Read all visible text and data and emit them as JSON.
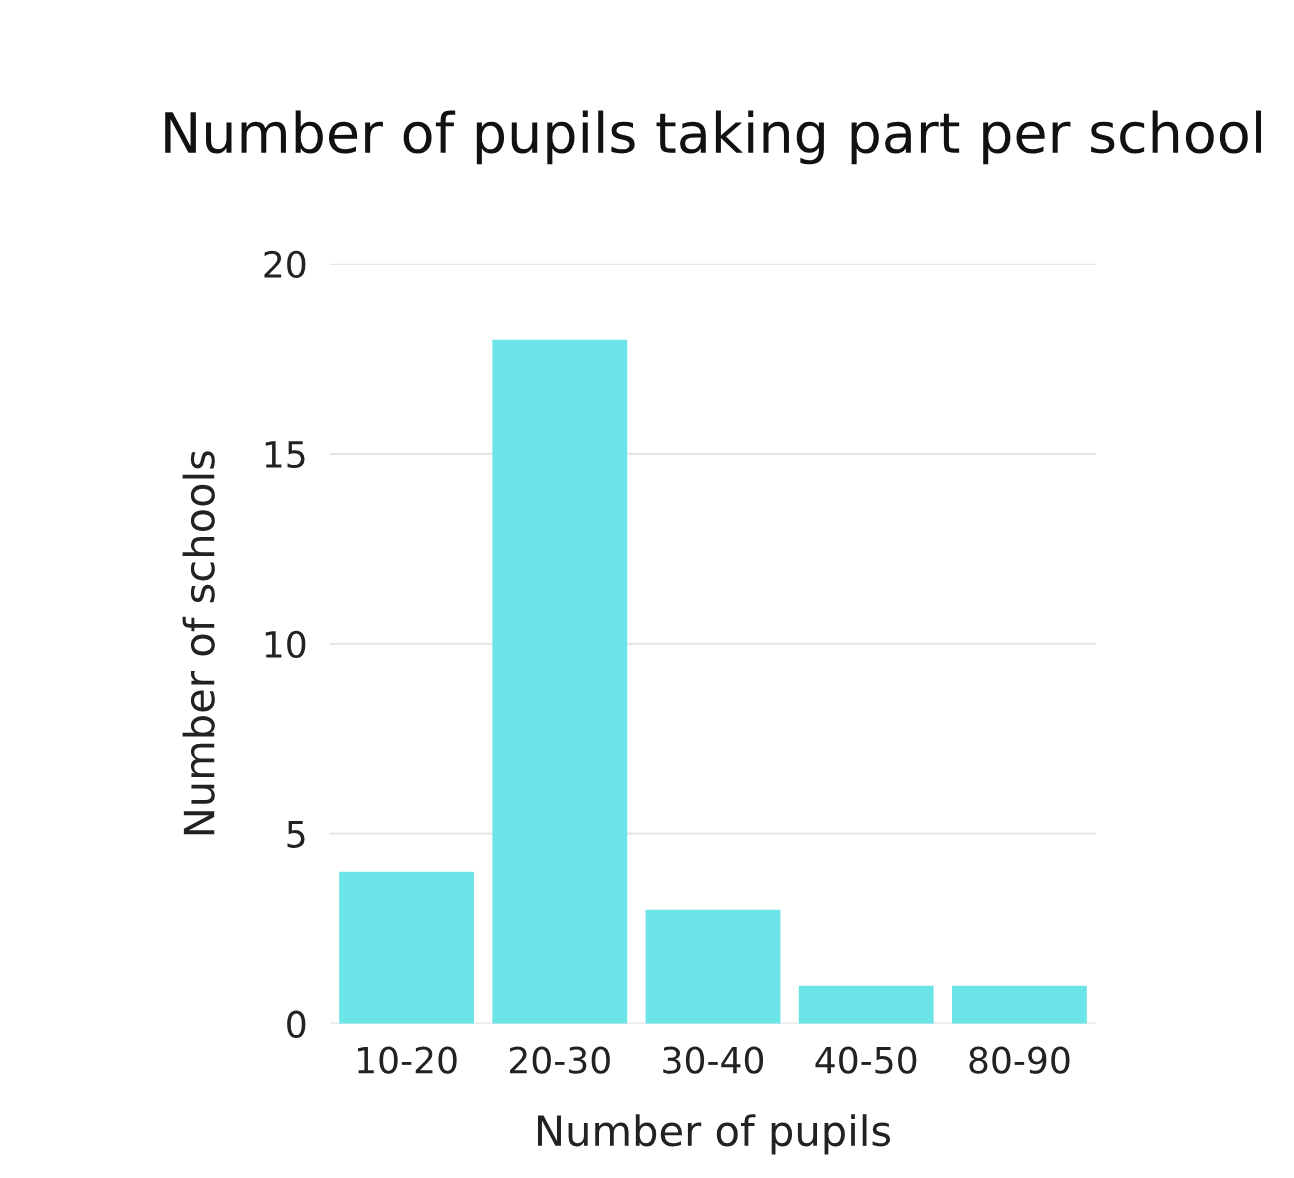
{
  "chart_data": {
    "type": "bar",
    "title": "Number of pupils taking part per school",
    "xlabel": "Number of pupils",
    "ylabel": "Number of schools",
    "categories": [
      "10-20",
      "20-30",
      "30-40",
      "40-50",
      "80-90"
    ],
    "values": [
      4,
      18,
      3,
      1,
      1
    ],
    "color": "#6be5e8",
    "ylim": [
      0,
      20
    ],
    "yticks": [
      0,
      5,
      10,
      15,
      20
    ],
    "grid": "y"
  }
}
